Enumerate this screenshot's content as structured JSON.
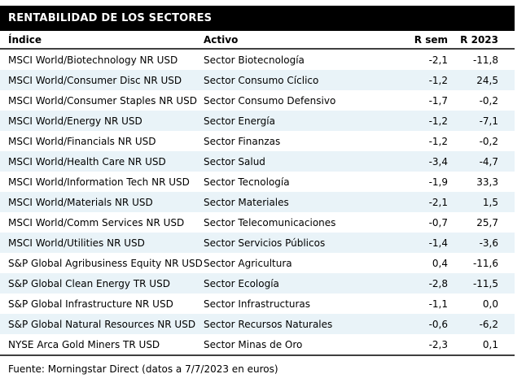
{
  "title": "RENTABILIDAD DE LOS SECTORES",
  "table": {
    "columns": [
      "Índice",
      "Activo",
      "R sem",
      "R 2023"
    ],
    "rows": [
      [
        "MSCI World/Biotechnology NR USD",
        "Sector Biotecnología",
        "-2,1",
        "-11,8"
      ],
      [
        "MSCI World/Consumer Disc NR USD",
        "Sector Consumo Cíclico",
        "-1,2",
        "24,5"
      ],
      [
        "MSCI World/Consumer Staples NR USD",
        "Sector Consumo Defensivo",
        "-1,7",
        "-0,2"
      ],
      [
        "MSCI World/Energy NR USD",
        "Sector Energía",
        "-1,2",
        "-7,1"
      ],
      [
        "MSCI World/Financials NR USD",
        "Sector Finanzas",
        "-1,2",
        "-0,2"
      ],
      [
        "MSCI World/Health Care NR USD",
        "Sector Salud",
        "-3,4",
        "-4,7"
      ],
      [
        "MSCI World/Information Tech NR USD",
        "Sector Tecnología",
        "-1,9",
        "33,3"
      ],
      [
        "MSCI World/Materials NR USD",
        "Sector Materiales",
        "-2,1",
        "1,5"
      ],
      [
        "MSCI World/Comm Services NR USD",
        "Sector Telecomunicaciones",
        "-0,7",
        "25,7"
      ],
      [
        "MSCI World/Utilities NR USD",
        "Sector Servicios Públicos",
        "-1,4",
        "-3,6"
      ],
      [
        "S&P Global Agribusiness Equity NR USD",
        "Sector Agricultura",
        "0,4",
        "-11,6"
      ],
      [
        "S&P Global Clean Energy TR USD",
        "Sector Ecología",
        "-2,8",
        "-11,5"
      ],
      [
        "S&P Global Infrastructure NR USD",
        "Sector Infrastructuras",
        "-1,1",
        "0,0"
      ],
      [
        "S&P Global Natural Resources NR USD",
        "Sector Recursos Naturales",
        "-0,6",
        "-6,2"
      ],
      [
        "NYSE Arca Gold Miners TR USD",
        "Sector Minas de Oro",
        "-2,3",
        "0,1"
      ]
    ]
  },
  "footer": {
    "source": "Fuente: Morningstar Direct (datos a 7/7/2023 en euros)"
  },
  "colors": {
    "banner_bg": "#000000",
    "banner_text": "#ffffff",
    "row_alt": "#e9f3f8",
    "rule": "#3f3f3f",
    "text": "#000000"
  },
  "chart_data": {
    "type": "table",
    "title": "RENTABILIDAD DE LOS SECTORES",
    "columns": [
      "Índice",
      "Activo",
      "R sem",
      "R 2023"
    ],
    "categories": [
      "Sector Biotecnología",
      "Sector Consumo Cíclico",
      "Sector Consumo Defensivo",
      "Sector Energía",
      "Sector Finanzas",
      "Sector Salud",
      "Sector Tecnología",
      "Sector Materiales",
      "Sector Telecomunicaciones",
      "Sector Servicios Públicos",
      "Sector Agricultura",
      "Sector Ecología",
      "Sector Infrastructuras",
      "Sector Recursos Naturales",
      "Sector Minas de Oro"
    ],
    "series": [
      {
        "name": "R sem",
        "values": [
          -2.1,
          -1.2,
          -1.7,
          -1.2,
          -1.2,
          -3.4,
          -1.9,
          -2.1,
          -0.7,
          -1.4,
          0.4,
          -2.8,
          -1.1,
          -0.6,
          -2.3
        ]
      },
      {
        "name": "R 2023",
        "values": [
          -11.8,
          24.5,
          -0.2,
          -7.1,
          -0.2,
          -4.7,
          33.3,
          1.5,
          25.7,
          -3.6,
          -11.6,
          -11.5,
          0.0,
          -6.2,
          0.1
        ]
      }
    ],
    "source": "Fuente: Morningstar Direct (datos a 7/7/2023 en euros)"
  }
}
